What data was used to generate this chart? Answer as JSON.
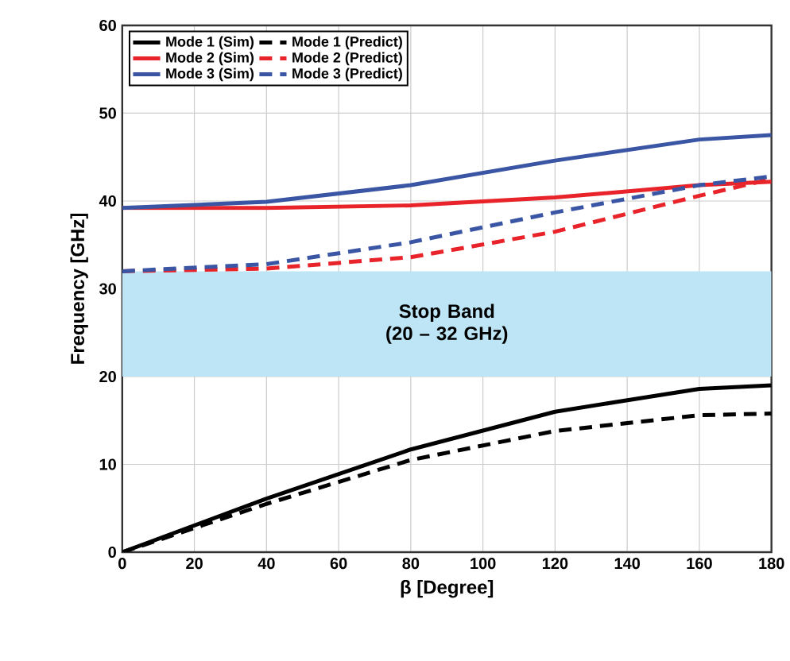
{
  "chart_data": {
    "type": "line",
    "xlabel": "β [Degree]",
    "ylabel": "Frequency [GHz]",
    "x": [
      0,
      40,
      80,
      120,
      160,
      180
    ],
    "series": [
      {
        "name": "Mode 1 (Sim)",
        "color": "#000000",
        "line_style": "solid",
        "values": [
          0,
          6.1,
          11.7,
          16,
          18.6,
          19
        ]
      },
      {
        "name": "Mode 1 (Predict)",
        "color": "#000000",
        "line_style": "dashed",
        "values": [
          0,
          5.5,
          10.5,
          13.8,
          15.6,
          15.8
        ]
      },
      {
        "name": "Mode 2 (Sim)",
        "color": "#e8242a",
        "line_style": "solid",
        "values": [
          39.2,
          39.2,
          39.5,
          40.4,
          41.8,
          42.2
        ]
      },
      {
        "name": "Mode 2 (Predict)",
        "color": "#e8242a",
        "line_style": "dashed",
        "values": [
          32,
          32.3,
          33.6,
          36.5,
          40.6,
          42.5
        ]
      },
      {
        "name": "Mode 3 (Sim)",
        "color": "#3a55a4",
        "line_style": "solid",
        "values": [
          39.2,
          39.9,
          41.8,
          44.6,
          47,
          47.5
        ]
      },
      {
        "name": "Mode 3 (Predict)",
        "color": "#3a55a4",
        "line_style": "dashed",
        "values": [
          32,
          32.8,
          35.3,
          38.7,
          41.8,
          42.8
        ]
      }
    ],
    "xlim": [
      0,
      180
    ],
    "xticks": [
      0,
      20,
      40,
      60,
      80,
      100,
      120,
      140,
      160,
      180
    ],
    "ylim": [
      0,
      60
    ],
    "yticks": [
      0,
      10,
      20,
      30,
      40,
      50,
      60
    ],
    "bands": [
      {
        "axis": "y",
        "from": 20,
        "to": 32,
        "label": "Stop Band (20 – 32 GHz)",
        "color": "#bde5f5"
      }
    ],
    "grid": true,
    "legend": "top left"
  }
}
